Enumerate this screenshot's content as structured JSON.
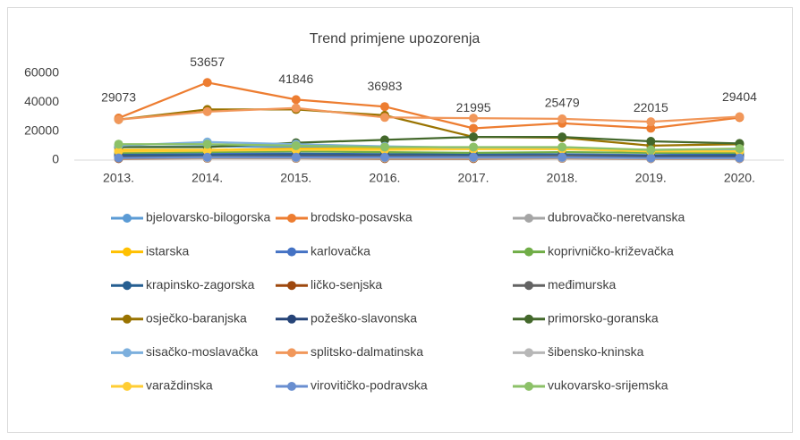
{
  "chart_data": {
    "type": "line",
    "title": "Trend primjene upozorenja",
    "categories": [
      "2013.",
      "2014.",
      "2015.",
      "2016.",
      "2017.",
      "2018.",
      "2019.",
      "2020."
    ],
    "ylim": [
      0,
      60000
    ],
    "yticks": [
      0,
      20000,
      40000,
      60000
    ],
    "grid": false,
    "legend": "bottom",
    "series": [
      {
        "name": "bjelovarsko-bilogorska",
        "color": "#5b9bd5",
        "values": [
          9000,
          9500,
          9000,
          8500,
          8000,
          8000,
          7000,
          7500
        ]
      },
      {
        "name": "brodsko-posavska",
        "color": "#ed7d31",
        "show_labels": true,
        "values": [
          29073,
          53657,
          41846,
          36983,
          21995,
          25479,
          22015,
          29404
        ]
      },
      {
        "name": "dubrovačko-neretvanska",
        "color": "#a5a5a5",
        "values": [
          3000,
          3500,
          3500,
          3000,
          3000,
          3000,
          2500,
          3000
        ]
      },
      {
        "name": "istarska",
        "color": "#ffc000",
        "values": [
          7000,
          7000,
          8000,
          8000,
          8000,
          8500,
          7000,
          7000
        ]
      },
      {
        "name": "karlovačka",
        "color": "#4472c4",
        "values": [
          4000,
          4500,
          4500,
          4000,
          4500,
          4000,
          3500,
          4000
        ]
      },
      {
        "name": "koprivničko-križevačka",
        "color": "#70ad47",
        "values": [
          5000,
          5500,
          6000,
          5500,
          5000,
          5500,
          5000,
          5000
        ]
      },
      {
        "name": "krapinsko-zagorska",
        "color": "#255e91",
        "values": [
          3500,
          3500,
          4000,
          4000,
          3500,
          3500,
          3000,
          3500
        ]
      },
      {
        "name": "ličko-senjska",
        "color": "#9e480e",
        "values": [
          1000,
          1200,
          1200,
          1000,
          1000,
          1200,
          1000,
          1000
        ]
      },
      {
        "name": "međimurska",
        "color": "#636363",
        "values": [
          2500,
          2500,
          3000,
          3000,
          2500,
          3000,
          2500,
          2500
        ]
      },
      {
        "name": "osječko-baranjska",
        "color": "#997300",
        "values": [
          28000,
          35000,
          35000,
          31000,
          16000,
          15500,
          10000,
          11000
        ]
      },
      {
        "name": "požeško-slavonska",
        "color": "#264478",
        "values": [
          2000,
          2000,
          2500,
          2500,
          2000,
          2000,
          2000,
          2000
        ]
      },
      {
        "name": "primorsko-goranska",
        "color": "#43682b",
        "values": [
          9000,
          9000,
          12000,
          14000,
          16000,
          16000,
          13000,
          11500
        ]
      },
      {
        "name": "sisačko-moslavačka",
        "color": "#7cafdd",
        "values": [
          10000,
          12500,
          11000,
          9500,
          8500,
          8000,
          7000,
          7500
        ]
      },
      {
        "name": "splitsko-dalmatinska",
        "color": "#f1975a",
        "values": [
          28000,
          33500,
          36000,
          29500,
          29000,
          28500,
          26500,
          30000
        ]
      },
      {
        "name": "šibensko-kninska",
        "color": "#b7b7b7",
        "values": [
          1500,
          1500,
          1500,
          1500,
          1500,
          1500,
          1200,
          1200
        ]
      },
      {
        "name": "varaždinska",
        "color": "#ffcd33",
        "values": [
          6000,
          6500,
          7000,
          7000,
          7500,
          7500,
          6000,
          6000
        ]
      },
      {
        "name": "virovitičko-podravska",
        "color": "#698ed0",
        "values": [
          1500,
          2000,
          2000,
          2000,
          2000,
          2000,
          1500,
          1500
        ]
      },
      {
        "name": "vukovarsko-srijemska",
        "color": "#8cc168",
        "values": [
          11000,
          11000,
          10000,
          9000,
          9000,
          9000,
          7000,
          8000
        ]
      }
    ]
  }
}
